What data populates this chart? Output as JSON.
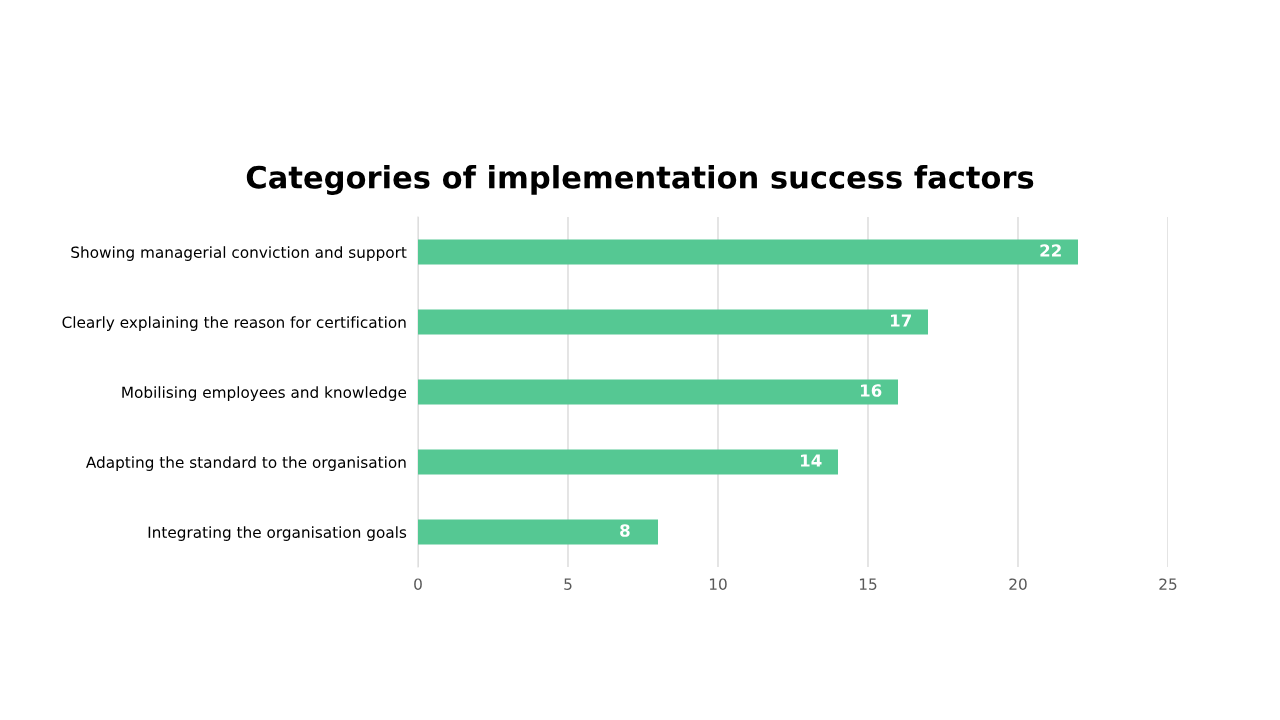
{
  "chart_data": {
    "type": "bar",
    "orientation": "horizontal",
    "title": "Categories of implementation success factors",
    "categories": [
      "Showing managerial conviction and support",
      "Clearly explaining the reason for certification",
      "Mobilising employees and knowledge",
      "Adapting the standard to the organisation",
      "Integrating the organisation goals"
    ],
    "values": [
      22,
      17,
      16,
      14,
      8
    ],
    "color": "#55c893",
    "xlim": [
      0,
      25
    ],
    "xticks": [
      0,
      5,
      10,
      15,
      20,
      25
    ],
    "grid": "x",
    "data_labels": true,
    "legend": false
  }
}
